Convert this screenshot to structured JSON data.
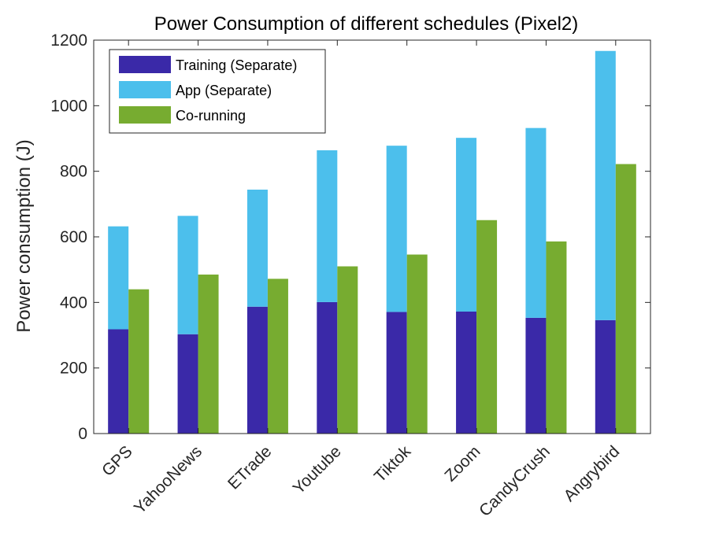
{
  "chart_data": {
    "type": "bar",
    "title": "Power Consumption of different schedules (Pixel2)",
    "xlabel": "",
    "ylabel": "Power consumption (J)",
    "ylim": [
      0,
      1200
    ],
    "yticks": [
      0,
      200,
      400,
      600,
      800,
      1000,
      1200
    ],
    "categories": [
      "GPS",
      "YahooNews",
      "ETrade",
      "Youtube",
      "Tiktok",
      "Zoom",
      "CandyCrush",
      "Angrybird"
    ],
    "series": [
      {
        "name": "Training (Separate)",
        "color": "#3a29a8",
        "stack": "separate",
        "values": [
          318,
          303,
          387,
          401,
          371,
          372,
          353,
          346
        ]
      },
      {
        "name": "App (Separate)",
        "color": "#4cbfec",
        "stack": "separate",
        "values": [
          314,
          361,
          357,
          463,
          507,
          530,
          579,
          821
        ]
      },
      {
        "name": "Co-running",
        "color": "#77ac30",
        "stack": "corun",
        "values": [
          440,
          485,
          472,
          510,
          546,
          651,
          586,
          822
        ]
      }
    ],
    "legend_position": "top-left",
    "grid": false
  }
}
